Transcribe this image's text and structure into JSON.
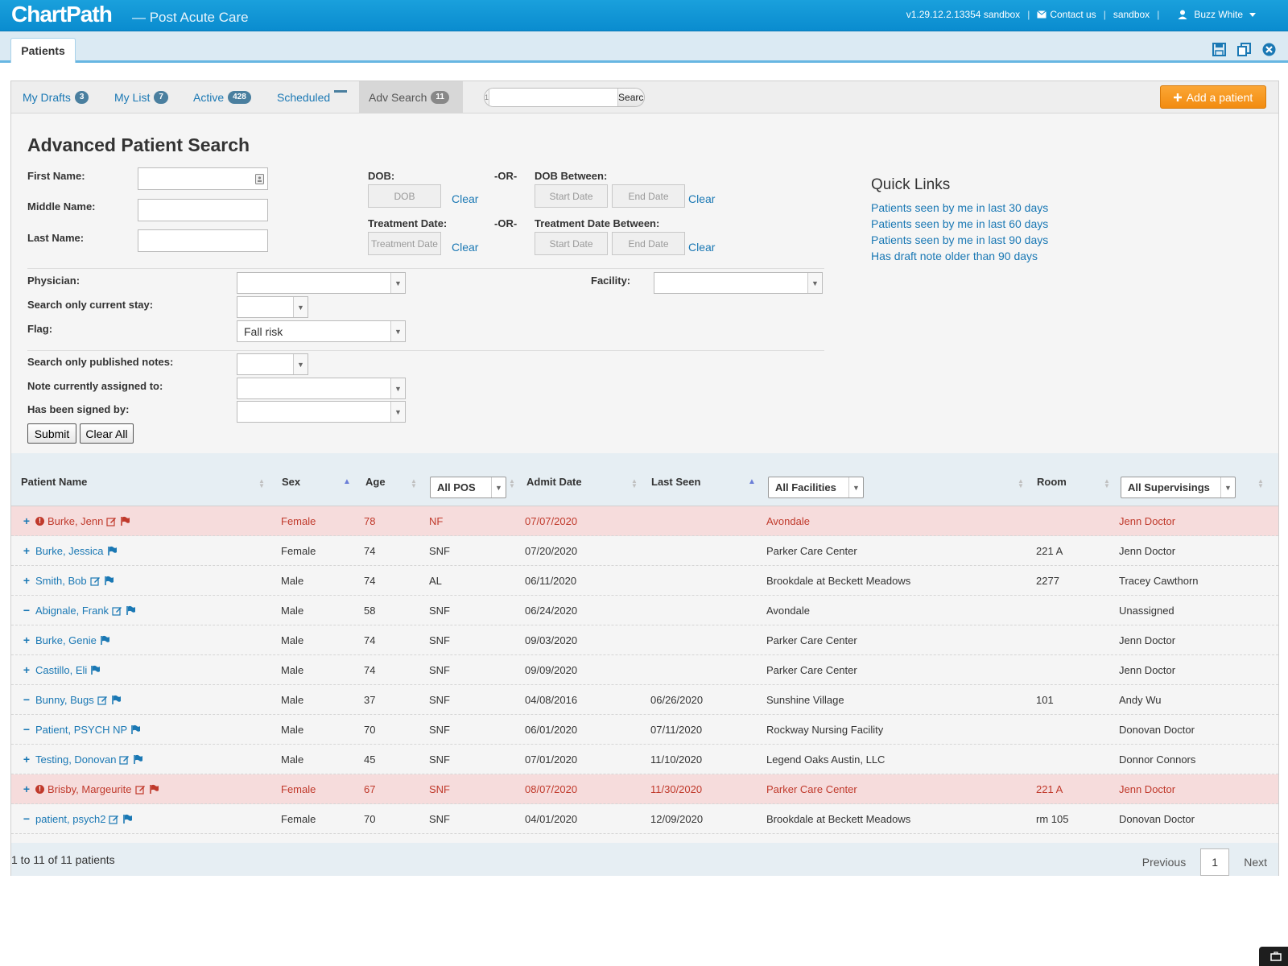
{
  "header": {
    "logo": "ChartPath",
    "logo_sub": "— Post Acute Care",
    "version": "v1.29.12.2.13354 sandbox",
    "contact": "Contact us",
    "env": "sandbox",
    "user": "Buzz White"
  },
  "app_tab": "Patients",
  "subtabs": [
    {
      "label": "My Drafts",
      "badge": "3"
    },
    {
      "label": "My List",
      "badge": "7"
    },
    {
      "label": "Active",
      "badge": "428"
    },
    {
      "label": "Scheduled",
      "badge": ""
    },
    {
      "label": "Adv Search",
      "badge": "11"
    }
  ],
  "quick_search": {
    "count": "1",
    "button": "Search"
  },
  "add_patient": "Add a patient",
  "adv": {
    "title": "Advanced Patient Search",
    "first_name": "First Name:",
    "middle_name": "Middle Name:",
    "last_name": "Last Name:",
    "dob": "DOB:",
    "dob_placeholder": "DOB",
    "or": "-OR-",
    "dob_between": "DOB Between:",
    "start_date": "Start Date",
    "end_date": "End Date",
    "clear": "Clear",
    "treatment_date": "Treatment Date:",
    "treatment_placeholder": "Treatment Date",
    "treatment_between": "Treatment Date Between:",
    "physician": "Physician:",
    "facility": "Facility:",
    "current_stay": "Search only current stay:",
    "flag": "Flag:",
    "flag_value": "Fall risk",
    "published": "Search only published notes:",
    "assigned": "Note currently assigned to:",
    "signed_by": "Has been signed by:",
    "submit": "Submit",
    "clear_all": "Clear All"
  },
  "quick_links": {
    "title": "Quick Links",
    "items": [
      "Patients seen by me in last 30 days",
      "Patients seen by me in last 60 days",
      "Patients seen by me in last 90 days",
      "Has draft note older than 90 days"
    ]
  },
  "table": {
    "headers": {
      "name": "Patient Name",
      "sex": "Sex",
      "age": "Age",
      "pos": "All POS",
      "admit": "Admit Date",
      "last_seen": "Last Seen",
      "facility": "All Facilities",
      "room": "Room",
      "supervising": "All Supervisings"
    },
    "rows": [
      {
        "expander": "+",
        "alert": true,
        "name": "Burke, Jenn",
        "edit": true,
        "sex": "Female",
        "age": "78",
        "pos": "NF",
        "admit": "07/07/2020",
        "last_seen": "",
        "facility": "Avondale",
        "room": "",
        "supervising": "Jenn Doctor"
      },
      {
        "expander": "+",
        "alert": false,
        "name": "Burke, Jessica",
        "edit": false,
        "sex": "Female",
        "age": "74",
        "pos": "SNF",
        "admit": "07/20/2020",
        "last_seen": "",
        "facility": "Parker Care Center",
        "room": "221 A",
        "supervising": "Jenn Doctor"
      },
      {
        "expander": "+",
        "alert": false,
        "name": "Smith, Bob",
        "edit": true,
        "sex": "Male",
        "age": "74",
        "pos": "AL",
        "admit": "06/11/2020",
        "last_seen": "",
        "facility": "Brookdale at Beckett Meadows",
        "room": "2277",
        "supervising": "Tracey Cawthorn"
      },
      {
        "expander": "−",
        "alert": false,
        "name": "Abignale, Frank",
        "edit": true,
        "sex": "Male",
        "age": "58",
        "pos": "SNF",
        "admit": "06/24/2020",
        "last_seen": "",
        "facility": "Avondale",
        "room": "",
        "supervising": "Unassigned"
      },
      {
        "expander": "+",
        "alert": false,
        "name": "Burke, Genie",
        "edit": false,
        "sex": "Male",
        "age": "74",
        "pos": "SNF",
        "admit": "09/03/2020",
        "last_seen": "",
        "facility": "Parker Care Center",
        "room": "",
        "supervising": "Jenn Doctor"
      },
      {
        "expander": "+",
        "alert": false,
        "name": "Castillo, Eli",
        "edit": false,
        "sex": "Male",
        "age": "74",
        "pos": "SNF",
        "admit": "09/09/2020",
        "last_seen": "",
        "facility": "Parker Care Center",
        "room": "",
        "supervising": "Jenn Doctor"
      },
      {
        "expander": "−",
        "alert": false,
        "name": "Bunny, Bugs",
        "edit": true,
        "sex": "Male",
        "age": "37",
        "pos": "SNF",
        "admit": "04/08/2016",
        "last_seen": "06/26/2020",
        "facility": "Sunshine Village",
        "room": "101",
        "supervising": "Andy Wu"
      },
      {
        "expander": "−",
        "alert": false,
        "name": "Patient, PSYCH NP",
        "edit": false,
        "sex": "Male",
        "age": "70",
        "pos": "SNF",
        "admit": "06/01/2020",
        "last_seen": "07/11/2020",
        "facility": "Rockway Nursing Facility",
        "room": "",
        "supervising": "Donovan Doctor"
      },
      {
        "expander": "+",
        "alert": false,
        "name": "Testing, Donovan",
        "edit": true,
        "sex": "Male",
        "age": "45",
        "pos": "SNF",
        "admit": "07/01/2020",
        "last_seen": "11/10/2020",
        "facility": "Legend Oaks Austin, LLC",
        "room": "",
        "supervising": "Donnor Connors"
      },
      {
        "expander": "+",
        "alert": true,
        "name": "Brisby, Margeurite",
        "edit": true,
        "sex": "Female",
        "age": "67",
        "pos": "SNF",
        "admit": "08/07/2020",
        "last_seen": "11/30/2020",
        "facility": "Parker Care Center",
        "room": "221 A",
        "supervising": "Jenn Doctor"
      },
      {
        "expander": "−",
        "alert": false,
        "name": "patient, psych2",
        "edit": true,
        "sex": "Female",
        "age": "70",
        "pos": "SNF",
        "admit": "04/01/2020",
        "last_seen": "12/09/2020",
        "facility": "Brookdale at Beckett Meadows",
        "room": "rm 105",
        "supervising": "Donovan Doctor"
      }
    ]
  },
  "footer": {
    "info": "1 to 11 of 11 patients",
    "previous": "Previous",
    "page": "1",
    "next": "Next"
  },
  "colors": {
    "brand": "#0a8ccf",
    "accent": "#f28c10",
    "link": "#1a78b4",
    "alert_row": "#f6dcdc",
    "alert_text": "#c0392b"
  }
}
